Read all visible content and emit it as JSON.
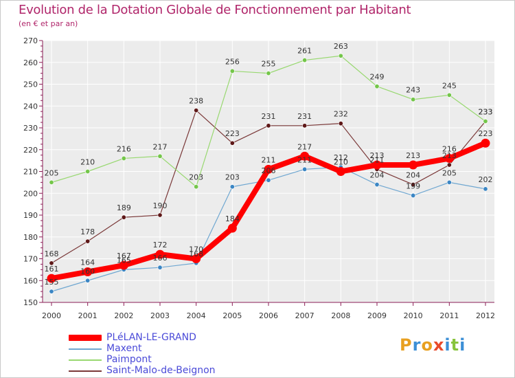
{
  "title": "Evolution de la Dotation Globale de Fonctionnement par Habitant",
  "subtitle": "(en € et par an)",
  "logo_text": "Proxiti",
  "colors": {
    "title": "#b0256a",
    "plot_bg": "#ececec",
    "grid": "#ffffff",
    "axis": "#8a1c55"
  },
  "chart_data": {
    "type": "line",
    "title": "Evolution de la Dotation Globale de Fonctionnement par Habitant",
    "subtitle": "(en € et par an)",
    "xlabel": "",
    "ylabel": "",
    "x": [
      "2000",
      "2001",
      "2002",
      "2003",
      "2004",
      "2005",
      "2006",
      "2007",
      "2008",
      "2009",
      "2010",
      "2011",
      "2012"
    ],
    "ylim": [
      150,
      270
    ],
    "yticks": [
      150,
      160,
      170,
      180,
      190,
      200,
      210,
      220,
      230,
      240,
      250,
      260,
      270
    ],
    "grid": true,
    "legend_position": "bottom-left",
    "series": [
      {
        "name": "PLéLAN-LE-GRAND",
        "color": "#ff0000",
        "marker": "#ff0000",
        "thick": true,
        "values": [
          161,
          164,
          167,
          172,
          170,
          184,
          211,
          217,
          210,
          213,
          213,
          216,
          223
        ],
        "labels": [
          "161",
          "164",
          "167",
          "172",
          "170",
          "184",
          "211",
          "217",
          "210",
          "213",
          "213",
          "216",
          "223"
        ]
      },
      {
        "name": "Maxent",
        "color": "#6fa7d1",
        "marker": "#3b86c4",
        "thick": false,
        "values": [
          155,
          160,
          165,
          166,
          168,
          203,
          206,
          211,
          212,
          204,
          199,
          205,
          202
        ],
        "labels": [
          "155",
          "160",
          "165",
          "166",
          "168",
          "203",
          "206",
          "211",
          "212",
          "204",
          "199",
          "205",
          "202"
        ]
      },
      {
        "name": "Paimpont",
        "color": "#98d870",
        "marker": "#74c64a",
        "thick": false,
        "values": [
          205,
          210,
          216,
          217,
          203,
          256,
          255,
          261,
          263,
          249,
          243,
          245,
          233
        ],
        "labels": [
          "205",
          "210",
          "216",
          "217",
          "203",
          "256",
          "255",
          "261",
          "263",
          "249",
          "243",
          "245",
          "233"
        ]
      },
      {
        "name": "Saint-Malo-de-Beignon",
        "color": "#7a3838",
        "marker": "#5e1818",
        "thick": false,
        "values": [
          168,
          178,
          189,
          190,
          238,
          223,
          231,
          231,
          232,
          211,
          204,
          213,
          233
        ],
        "labels": [
          "168",
          "178",
          "189",
          "190",
          "238",
          "223",
          "231",
          "231",
          "232",
          "211",
          "204",
          "213",
          "233"
        ]
      }
    ]
  }
}
